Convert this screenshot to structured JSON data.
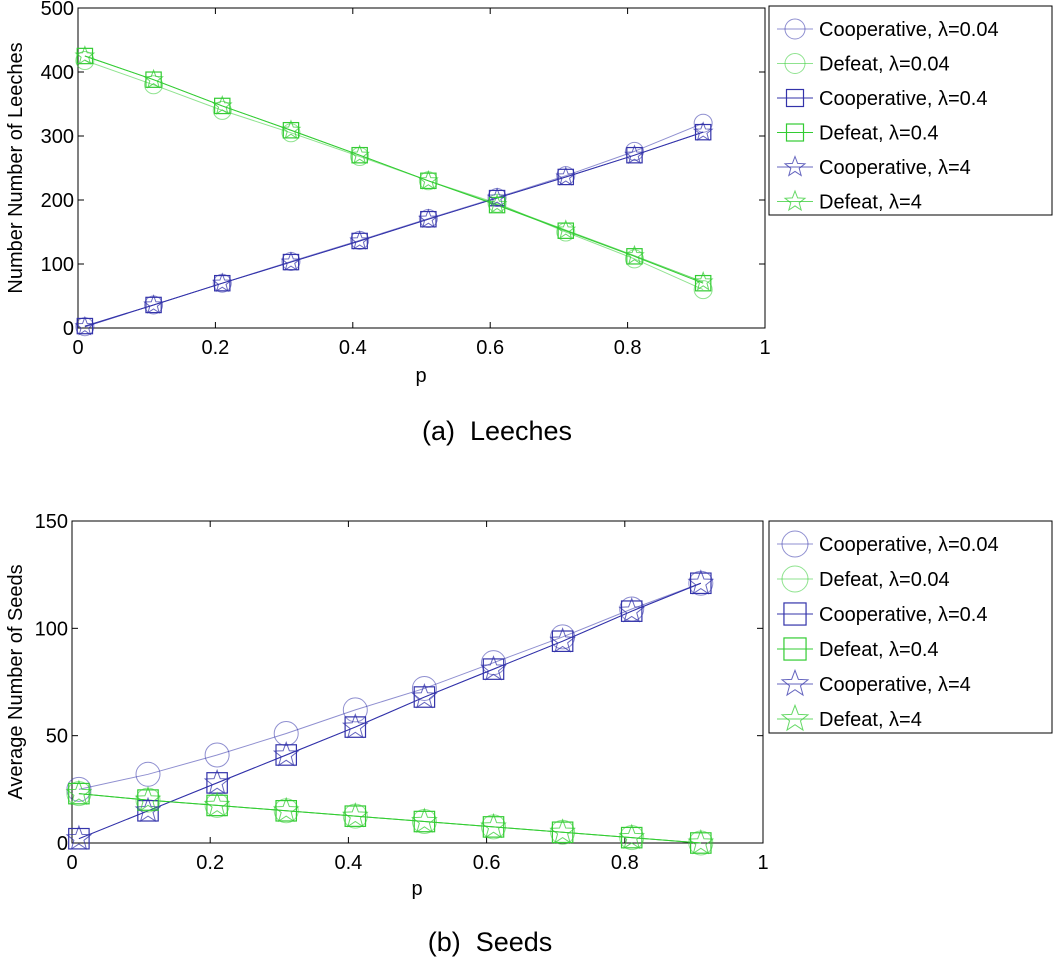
{
  "colors": {
    "cooperative": "#3333aa",
    "defeat": "#33cc33",
    "axis": "#000000"
  },
  "chart_data": [
    {
      "id": "a",
      "type": "line",
      "caption": "(a)  Leeches",
      "xlabel": "p",
      "ylabel": "Number Number of Leeches",
      "xlim": [
        0,
        1
      ],
      "ylim": [
        0,
        500
      ],
      "xticks": [
        "0",
        "0.2",
        "0.4",
        "0.6",
        "0.8",
        "1"
      ],
      "yticks": [
        "0",
        "100",
        "200",
        "300",
        "400",
        "500"
      ],
      "legend_position": "outside-right-top",
      "x": [
        0.01,
        0.11,
        0.21,
        0.31,
        0.41,
        0.51,
        0.61,
        0.71,
        0.81,
        0.91
      ],
      "series": [
        {
          "name": "Cooperative",
          "lambda": "0.04",
          "group": "cooperative",
          "marker": "circle",
          "values": [
            2,
            36,
            70,
            104,
            137,
            171,
            204,
            238,
            276,
            320
          ]
        },
        {
          "name": "Defeat",
          "lambda": "0.04",
          "group": "defeat",
          "marker": "circle",
          "values": [
            418,
            380,
            340,
            305,
            268,
            230,
            195,
            150,
            108,
            60
          ]
        },
        {
          "name": "Cooperative",
          "lambda": "0.4",
          "group": "cooperative",
          "marker": "square",
          "values": [
            3,
            36,
            70,
            103,
            136,
            170,
            203,
            236,
            270,
            306
          ]
        },
        {
          "name": "Defeat",
          "lambda": "0.4",
          "group": "defeat",
          "marker": "square",
          "values": [
            425,
            388,
            347,
            309,
            270,
            230,
            192,
            152,
            112,
            70
          ]
        },
        {
          "name": "Cooperative",
          "lambda": "4",
          "group": "cooperative",
          "marker": "star",
          "values": [
            2,
            36,
            70,
            103,
            136,
            170,
            203,
            236,
            270,
            306
          ]
        },
        {
          "name": "Defeat",
          "lambda": "4",
          "group": "defeat",
          "marker": "star",
          "values": [
            425,
            388,
            347,
            309,
            270,
            230,
            193,
            153,
            113,
            72
          ]
        }
      ]
    },
    {
      "id": "b",
      "type": "line",
      "caption": "(b)  Seeds",
      "xlabel": "p",
      "ylabel": "Average Number of Seeds",
      "xlim": [
        0,
        1
      ],
      "ylim": [
        0,
        150
      ],
      "xticks": [
        "0",
        "0.2",
        "0.4",
        "0.6",
        "0.8",
        "1"
      ],
      "yticks": [
        "0",
        "50",
        "100",
        "150"
      ],
      "legend_position": "outside-right-top",
      "x": [
        0.01,
        0.11,
        0.21,
        0.31,
        0.41,
        0.51,
        0.61,
        0.71,
        0.81,
        0.91
      ],
      "series": [
        {
          "name": "Cooperative",
          "lambda": "0.04",
          "group": "cooperative",
          "marker": "circle",
          "values": [
            25,
            32,
            41,
            51,
            62,
            72,
            84,
            96,
            109,
            121
          ]
        },
        {
          "name": "Defeat",
          "lambda": "0.04",
          "group": "defeat",
          "marker": "circle",
          "values": [
            23,
            20,
            17.5,
            15,
            12.5,
            10,
            7.5,
            5,
            2.5,
            0
          ]
        },
        {
          "name": "Cooperative",
          "lambda": "0.4",
          "group": "cooperative",
          "marker": "square",
          "values": [
            2,
            15,
            28,
            41,
            54,
            68,
            81,
            94,
            108,
            121
          ]
        },
        {
          "name": "Defeat",
          "lambda": "0.4",
          "group": "defeat",
          "marker": "square",
          "values": [
            23,
            20,
            17.5,
            15,
            12.5,
            10,
            7.5,
            5,
            2.5,
            0
          ]
        },
        {
          "name": "Cooperative",
          "lambda": "4",
          "group": "cooperative",
          "marker": "star",
          "values": [
            2,
            15,
            28,
            41,
            54,
            68,
            81,
            94,
            108,
            121
          ]
        },
        {
          "name": "Defeat",
          "lambda": "4",
          "group": "defeat",
          "marker": "star",
          "values": [
            23,
            20,
            17.5,
            15,
            12.5,
            10,
            7.5,
            5,
            2.5,
            0
          ]
        }
      ]
    }
  ]
}
